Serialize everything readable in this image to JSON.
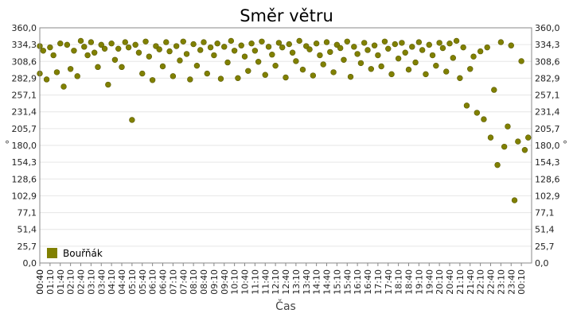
{
  "chart_data": {
    "type": "scatter",
    "title": "Směr větru",
    "xlabel": "Čas",
    "ylabel": "°",
    "ylabel_right": "°",
    "ylim": [
      0,
      360
    ],
    "grid": true,
    "legend_placement": "bottom-left",
    "y_ticks": [
      "0,0",
      "25,7",
      "51,4",
      "77,1",
      "102,9",
      "128,6",
      "154,3",
      "180,0",
      "205,7",
      "231,4",
      "257,1",
      "282,9",
      "308,6",
      "334,3",
      "360,0"
    ],
    "x_ticks": [
      "00:40",
      "01:10",
      "01:40",
      "02:10",
      "02:40",
      "03:10",
      "03:40",
      "04:10",
      "04:40",
      "05:10",
      "05:40",
      "06:10",
      "06:40",
      "07:10",
      "07:40",
      "08:10",
      "08:40",
      "09:10",
      "09:40",
      "10:10",
      "10:40",
      "11:10",
      "11:40",
      "12:10",
      "12:40",
      "13:10",
      "13:40",
      "14:10",
      "14:40",
      "15:10",
      "15:40",
      "16:10",
      "16:40",
      "17:10",
      "17:40",
      "18:10",
      "18:40",
      "19:10",
      "19:40",
      "20:10",
      "20:40",
      "21:10",
      "21:40",
      "22:10",
      "22:40",
      "23:10",
      "23:40",
      "00:10",
      "00:40"
    ],
    "series": [
      {
        "name": "Bouřňák",
        "color": "#808000",
        "x": [
          "00:40",
          "00:50",
          "01:00",
          "01:10",
          "01:20",
          "01:30",
          "01:40",
          "01:50",
          "02:00",
          "02:10",
          "02:20",
          "02:30",
          "02:40",
          "02:50",
          "03:00",
          "03:10",
          "03:20",
          "03:30",
          "03:40",
          "03:50",
          "04:00",
          "04:10",
          "04:20",
          "04:30",
          "04:40",
          "04:50",
          "05:00",
          "05:10",
          "05:20",
          "05:30",
          "05:40",
          "05:50",
          "06:00",
          "06:10",
          "06:20",
          "06:30",
          "06:40",
          "06:50",
          "07:00",
          "07:10",
          "07:20",
          "07:30",
          "07:40",
          "07:50",
          "08:00",
          "08:10",
          "08:20",
          "08:30",
          "08:40",
          "08:50",
          "09:00",
          "09:10",
          "09:20",
          "09:30",
          "09:40",
          "09:50",
          "10:00",
          "10:10",
          "10:20",
          "10:30",
          "10:40",
          "10:50",
          "11:00",
          "11:10",
          "11:20",
          "11:30",
          "11:40",
          "11:50",
          "12:00",
          "12:10",
          "12:20",
          "12:30",
          "12:40",
          "12:50",
          "13:00",
          "13:10",
          "13:20",
          "13:30",
          "13:40",
          "13:50",
          "14:00",
          "14:10",
          "14:20",
          "14:30",
          "14:40",
          "14:50",
          "15:00",
          "15:10",
          "15:20",
          "15:30",
          "15:40",
          "15:50",
          "16:00",
          "16:10",
          "16:20",
          "16:30",
          "16:40",
          "16:50",
          "17:00",
          "17:10",
          "17:20",
          "17:30",
          "17:40",
          "17:50",
          "18:00",
          "18:10",
          "18:20",
          "18:30",
          "18:40",
          "18:50",
          "19:00",
          "19:10",
          "19:20",
          "19:30",
          "19:40",
          "19:50",
          "20:00",
          "20:10",
          "20:20",
          "20:30",
          "20:40",
          "20:50",
          "21:00",
          "21:10",
          "21:20",
          "21:30",
          "21:40",
          "21:50",
          "22:00",
          "22:10",
          "22:20",
          "22:30",
          "22:40",
          "22:50",
          "23:00",
          "23:10",
          "23:20",
          "23:30",
          "23:40",
          "23:50",
          "00:00",
          "00:10",
          "00:20",
          "00:30",
          "00:40"
        ],
        "y": [
          332,
          325,
          281,
          330,
          318,
          292,
          336,
          270,
          334,
          297,
          325,
          286,
          340,
          331,
          318,
          338,
          322,
          300,
          334,
          328,
          273,
          336,
          311,
          328,
          300,
          338,
          330,
          219,
          334,
          322,
          290,
          339,
          316,
          280,
          332,
          327,
          301,
          338,
          324,
          286,
          332,
          310,
          339,
          320,
          281,
          335,
          302,
          326,
          338,
          290,
          330,
          318,
          336,
          282,
          331,
          307,
          340,
          325,
          283,
          333,
          316,
          294,
          336,
          325,
          308,
          339,
          288,
          331,
          319,
          302,
          337,
          330,
          284,
          335,
          322,
          309,
          340,
          296,
          332,
          327,
          287,
          336,
          318,
          304,
          338,
          323,
          292,
          334,
          329,
          311,
          339,
          285,
          331,
          320,
          306,
          337,
          326,
          297,
          333,
          318,
          301,
          339,
          328,
          289,
          335,
          313,
          337,
          322,
          296,
          331,
          307,
          338,
          326,
          289,
          334,
          318,
          302,
          337,
          329,
          293,
          336,
          314,
          340,
          283,
          330,
          241,
          297,
          316,
          230,
          324,
          220,
          330,
          192,
          265,
          150,
          338,
          178,
          209,
          333,
          96,
          186,
          309,
          173,
          192,
          290
        ],
        "annotations": []
      }
    ]
  }
}
